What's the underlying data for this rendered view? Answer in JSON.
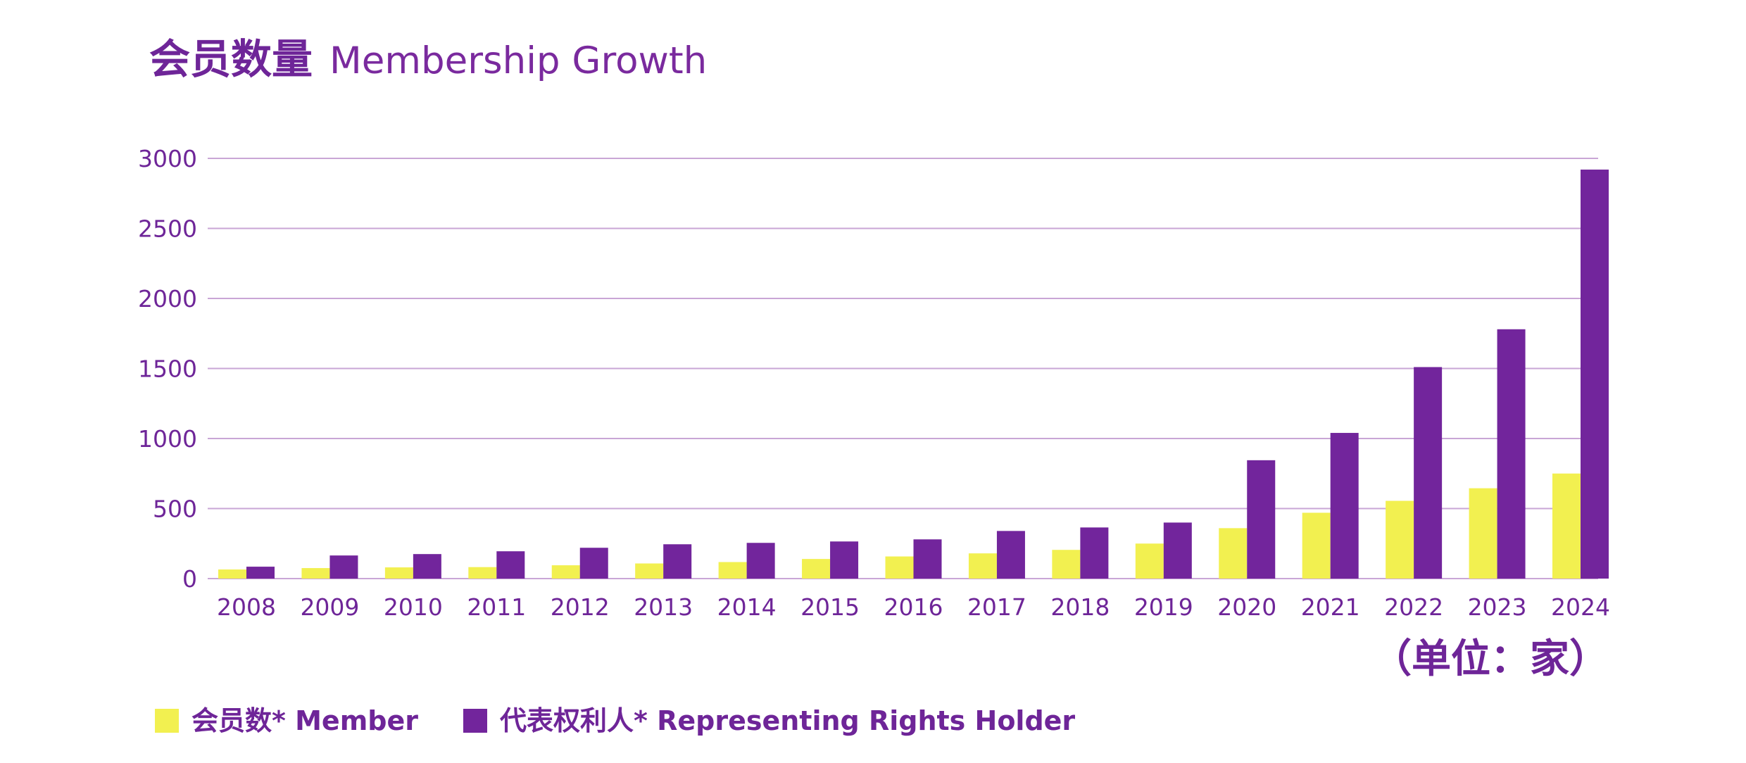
{
  "colors": {
    "member": "#f2f050",
    "representing": "#72259c",
    "grid": "#c9a6d6",
    "text": "#6e2598"
  },
  "chart_data": {
    "type": "bar",
    "title": "会员数量",
    "subtitle": "Membership Growth",
    "unit": "（单位：家）",
    "xlabel": "",
    "ylabel": "",
    "ylim": [
      0,
      3000
    ],
    "yticks": [
      0,
      500,
      1000,
      1500,
      2000,
      2500,
      3000
    ],
    "grid": true,
    "legend_position": "bottom-left",
    "categories": [
      "2008",
      "2009",
      "2010",
      "2011",
      "2012",
      "2013",
      "2014",
      "2015",
      "2016",
      "2017",
      "2018",
      "2019",
      "2020",
      "2021",
      "2022",
      "2023",
      "2024"
    ],
    "series": [
      {
        "name": "会员数* Member",
        "color": "#f2f050",
        "values": [
          65,
          75,
          80,
          82,
          95,
          108,
          118,
          140,
          158,
          180,
          205,
          250,
          360,
          470,
          555,
          645,
          750
        ]
      },
      {
        "name": "代表权利人* Representing Rights Holder",
        "color": "#72259c",
        "values": [
          85,
          165,
          175,
          195,
          220,
          245,
          255,
          265,
          280,
          340,
          365,
          400,
          845,
          1040,
          1510,
          1780,
          2920
        ]
      }
    ]
  }
}
